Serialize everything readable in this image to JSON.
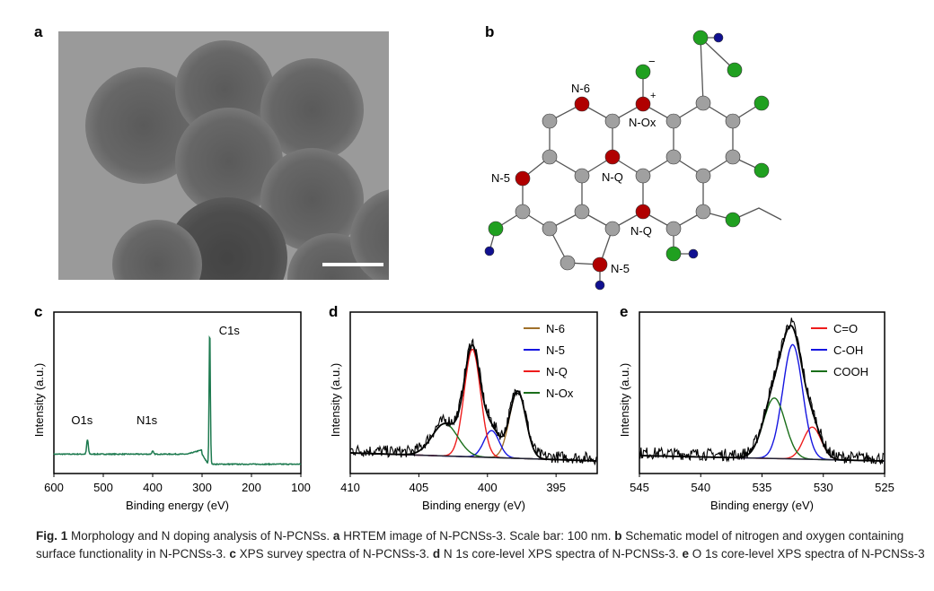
{
  "panels": {
    "a": "a",
    "b": "b",
    "c": "c",
    "d": "d",
    "e": "e"
  },
  "molecule": {
    "labels": [
      "N-6",
      "N-Ox",
      "N-Q",
      "N-5",
      "N-Q",
      "N-5"
    ],
    "charge_minus": "−",
    "charge_plus": "+"
  },
  "colors": {
    "survey": "#1d7a4f",
    "n6": "#a0702a",
    "n5": "#1515e0",
    "nq": "#ee1c1c",
    "nox": "#1a6e1a",
    "co": "#ee1c1c",
    "coh": "#1515e0",
    "cooh": "#1a6e1a",
    "N": "#b00000",
    "C": "#a0a0a0",
    "O": "#20a020",
    "H": "#101090"
  },
  "chart_data": [
    {
      "panel": "c",
      "type": "line",
      "title": "",
      "xlabel": "Binding energy (eV)",
      "ylabel": "Intensity (a.u.)",
      "xlim": [
        600,
        100
      ],
      "xticks": [
        600,
        500,
        400,
        300,
        200,
        100
      ],
      "annotations": [
        {
          "text": "C1s",
          "x": 284
        },
        {
          "text": "O1s",
          "x": 532
        },
        {
          "text": "N1s",
          "x": 400
        }
      ],
      "series": [
        {
          "name": "survey",
          "peaks": [
            {
              "center": 284.5,
              "height": 0.95,
              "fwhm": 3
            },
            {
              "center": 532,
              "height": 0.1,
              "fwhm": 4
            },
            {
              "center": 400,
              "height": 0.02,
              "fwhm": 4
            }
          ],
          "background_low": 0.03,
          "background_high": 0.2
        }
      ]
    },
    {
      "panel": "d",
      "type": "line",
      "title": "",
      "xlabel": "Binding energy (eV)",
      "ylabel": "Intensity (a.u.)",
      "xlim": [
        410,
        392
      ],
      "xticks": [
        410,
        405,
        400,
        395
      ],
      "legend": "top-right",
      "series": [
        {
          "name": "N-6",
          "center": 397.8,
          "height": 0.5,
          "fwhm": 1.4
        },
        {
          "name": "N-5",
          "center": 399.7,
          "height": 0.2,
          "fwhm": 1.3
        },
        {
          "name": "N-Q",
          "center": 401.1,
          "height": 0.8,
          "fwhm": 1.4
        },
        {
          "name": "N-Ox",
          "center": 403.1,
          "height": 0.24,
          "fwhm": 2.2
        }
      ]
    },
    {
      "panel": "e",
      "type": "line",
      "title": "",
      "xlabel": "Binding energy (eV)",
      "ylabel": "Intensity (a.u.)",
      "xlim": [
        545,
        525
      ],
      "xticks": [
        545,
        540,
        535,
        530,
        525
      ],
      "legend": "top-right",
      "series": [
        {
          "name": "C=O",
          "center": 530.9,
          "height": 0.24,
          "fwhm": 1.7
        },
        {
          "name": "C-OH",
          "center": 532.5,
          "height": 0.85,
          "fwhm": 1.9
        },
        {
          "name": "COOH",
          "center": 534.0,
          "height": 0.45,
          "fwhm": 2.1
        }
      ]
    }
  ],
  "caption": {
    "fig": "Fig. 1",
    "t0": " Morphology and N doping analysis of N-PCNSs. ",
    "a": "a",
    "ta": " HRTEM image of N-PCNSs-3. Scale bar: 100 nm. ",
    "b": "b",
    "tb": " Schematic model of nitrogen and oxygen containing surface functionality in N-PCNSs-3. ",
    "c": "c",
    "tc": " XPS survey spectra of N-PCNSs-3. ",
    "d": "d",
    "td": " N 1s core-level XPS spectra of N-PCNSs-3. ",
    "e": "e",
    "te": " O 1s core-level XPS spectra of N-PCNSs-3"
  }
}
